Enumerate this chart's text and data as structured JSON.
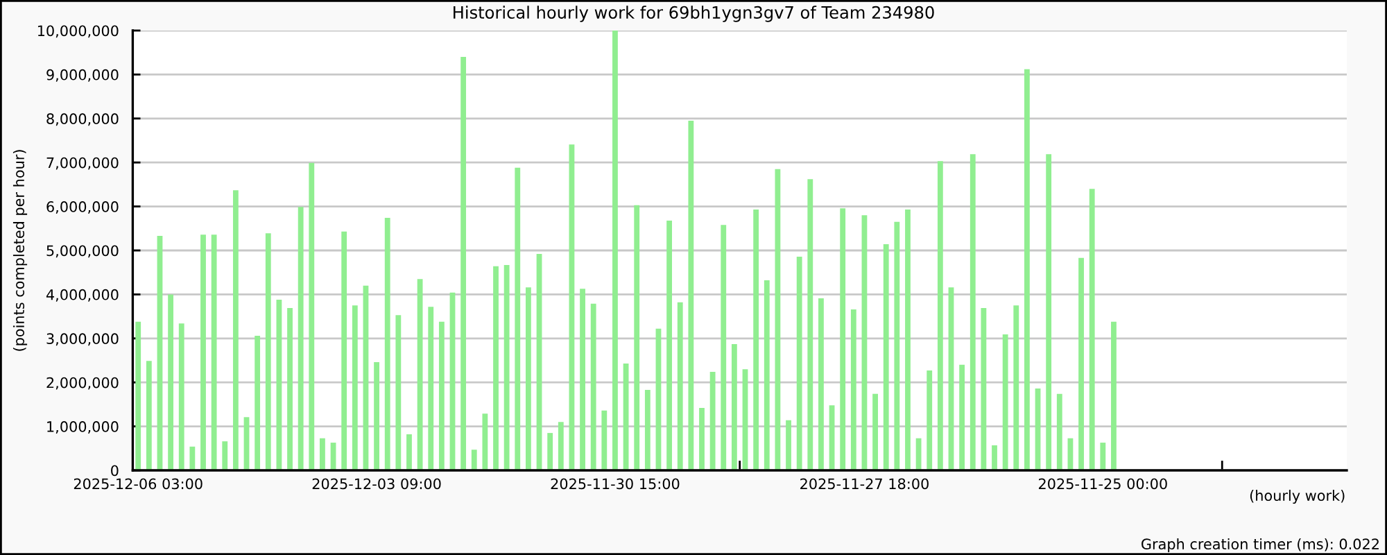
{
  "chart_data": {
    "type": "bar",
    "title": "Historical hourly work for 69bh1ygn3gv7 of Team 234980",
    "xlabel": "(hourly work)",
    "ylabel": "(points completed per hour)",
    "annotations": [
      "Graph creation timer (ms): 0.022"
    ],
    "categories": [
      "2025-12-06 03:00",
      null,
      null,
      null,
      null,
      null,
      null,
      null,
      null,
      null,
      null,
      null,
      null,
      null,
      null,
      null,
      null,
      null,
      null,
      null,
      null,
      null,
      "2025-12-03 09:00",
      null,
      null,
      null,
      null,
      null,
      null,
      null,
      null,
      null,
      null,
      null,
      null,
      null,
      null,
      null,
      null,
      null,
      null,
      null,
      null,
      null,
      "2025-11-30 15:00",
      null,
      null,
      null,
      null,
      null,
      null,
      null,
      null,
      null,
      null,
      null,
      null,
      null,
      null,
      null,
      null,
      null,
      null,
      null,
      null,
      null,
      null,
      "2025-11-27 18:00",
      null,
      null,
      null,
      null,
      null,
      null,
      null,
      null,
      null,
      null,
      null,
      null,
      null,
      null,
      null,
      null,
      null,
      null,
      null,
      null,
      null,
      "2025-11-25 00:00",
      null,
      null,
      null,
      null,
      null,
      null,
      null,
      null,
      null,
      null,
      null,
      null,
      null,
      null,
      null,
      null,
      null,
      null,
      null,
      null,
      null,
      null
    ],
    "values": [
      3380000,
      2490000,
      5330000,
      4000000,
      3340000,
      540000,
      5360000,
      5360000,
      660000,
      6370000,
      1210000,
      3060000,
      5390000,
      3880000,
      3690000,
      5990000,
      6990000,
      730000,
      630000,
      5430000,
      3750000,
      4200000,
      2460000,
      5740000,
      3530000,
      820000,
      4350000,
      3720000,
      3380000,
      4040000,
      9400000,
      470000,
      1290000,
      4640000,
      4670000,
      6880000,
      4160000,
      4920000,
      850000,
      1100000,
      7410000,
      4130000,
      3790000,
      1360000,
      10000000,
      2430000,
      6030000,
      1830000,
      3220000,
      5680000,
      3820000,
      7950000,
      1420000,
      2240000,
      5580000,
      2870000,
      2300000,
      5930000,
      4320000,
      6850000,
      1140000,
      4860000,
      6620000,
      3910000,
      1480000,
      5960000,
      3660000,
      5800000,
      1740000,
      5140000,
      5650000,
      5930000,
      730000,
      2270000,
      7030000,
      4160000,
      2400000,
      7190000,
      3690000,
      570000,
      3090000,
      3750000,
      9120000,
      1860000,
      7190000,
      1740000,
      730000,
      4830000,
      6400000,
      630000,
      3380000,
      null,
      null,
      null,
      null,
      null,
      null,
      null,
      null,
      null,
      null,
      null,
      null,
      null,
      null,
      null,
      null,
      null,
      null,
      null,
      null,
      null
    ],
    "color": "#90ee90",
    "ylim": [
      0,
      10000000
    ],
    "yticks": [
      0,
      {
        "value": 1000000,
        "label": "1,000,000"
      },
      {
        "value": 2000000,
        "label": "2,000,000"
      },
      {
        "value": 3000000,
        "label": "3,000,000"
      },
      {
        "value": 4000000,
        "label": "4,000,000"
      },
      {
        "value": 5000000,
        "label": "5,000,000"
      },
      {
        "value": 6000000,
        "label": "6,000,000"
      },
      {
        "value": 7000000,
        "label": "7,000,000"
      },
      {
        "value": 8000000,
        "label": "8,000,000"
      },
      {
        "value": 9000000,
        "label": "9,000,000"
      },
      {
        "value": 10000000,
        "label": "10,000,000"
      }
    ],
    "grid": "y"
  }
}
